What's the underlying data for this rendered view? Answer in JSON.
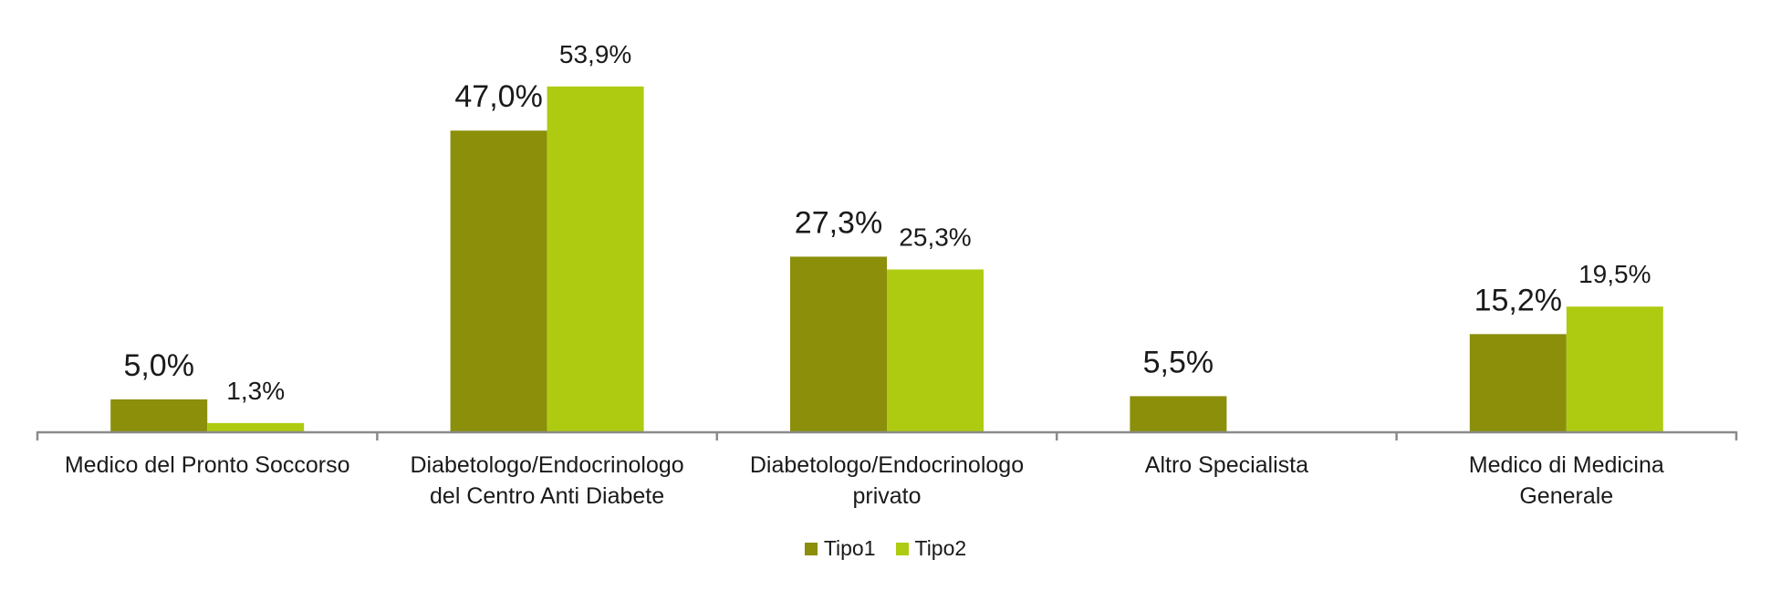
{
  "chart_data": {
    "type": "bar",
    "categories": [
      "Medico del Pronto Soccorso",
      "Diabetologo/Endocrinologo\ndel Centro Anti Diabete",
      "Diabetologo/Endocrinologo\nprivato",
      "Altro Specialista",
      "Medico di Medicina\nGenerale"
    ],
    "series": [
      {
        "name": "Tipo1",
        "color": "#8b8f0a",
        "values": [
          5.0,
          47.0,
          27.3,
          5.5,
          15.2
        ],
        "labels": [
          "5,0%",
          "47,0%",
          "27,3%",
          "5,5%",
          "15,2%"
        ]
      },
      {
        "name": "Tipo2",
        "color": "#aecb12",
        "values": [
          1.3,
          53.9,
          25.3,
          null,
          19.5
        ],
        "labels": [
          "1,3%",
          "53,9%",
          "25,3%",
          "",
          "19,5%"
        ]
      }
    ],
    "ylim": [
      0,
      60
    ],
    "grid": false,
    "legend_position": "bottom-center",
    "axis_color": "#8a8a8a"
  }
}
